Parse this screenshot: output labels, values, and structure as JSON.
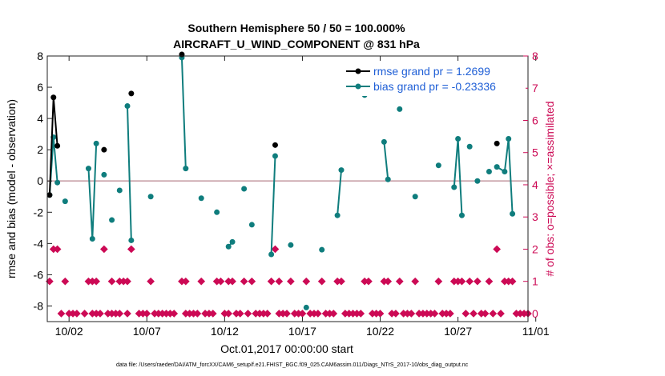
{
  "chart_data": {
    "type": "line",
    "title": "Southern Hemisphere 50 / 50 = 100.000%",
    "subtitle": "AIRCRAFT_U_WIND_COMPONENT @ 831 hPa",
    "xlabel": "Oct.01,2017 00:00:00 start",
    "ylabel": "rmse and bias (model - observation)",
    "y2label": "# of obs: o=possible; ×=assimilated",
    "footnote": "data file: /Users/raeder/DAI/ATM_forcXX/CAM6_setup/f.e21.FHIST_BGC.f09_025.CAM6assim.011/Diags_NTrS_2017-10/obs_diag_output.nc",
    "xlim": [
      0.6,
      31.5
    ],
    "ylim": [
      -9,
      8
    ],
    "y2lim": [
      -0.25,
      8
    ],
    "x_ticks": [
      2,
      7,
      12,
      17,
      22,
      27,
      32
    ],
    "x_tick_labels": [
      "10/02",
      "10/07",
      "10/12",
      "10/17",
      "10/22",
      "10/27",
      "11/01"
    ],
    "y_ticks": [
      -8,
      -6,
      -4,
      -2,
      0,
      2,
      4,
      6,
      8
    ],
    "y2_ticks": [
      0,
      1,
      2,
      3,
      4,
      5,
      6,
      7,
      8
    ],
    "zero_line": 0,
    "legend_location": "top-right",
    "series": [
      {
        "name": "rmse grand pr = 1.2699",
        "color": "#000000",
        "axis": "left",
        "segments": [
          [
            [
              0.75,
              -0.9
            ],
            [
              1.0,
              5.35
            ],
            [
              1.25,
              2.25
            ]
          ],
          [
            [
              4.25,
              2.0
            ]
          ],
          [
            [
              6.0,
              5.6
            ]
          ],
          [
            [
              9.25,
              8.1
            ]
          ],
          [
            [
              15.25,
              2.3
            ]
          ],
          [
            [
              29.5,
              2.4
            ]
          ]
        ]
      },
      {
        "name": "bias grand pr = -0.23336",
        "color": "#0f7d7d",
        "axis": "left",
        "segments": [
          [
            [
              0.75,
              -0.9
            ],
            [
              1.0,
              2.8
            ],
            [
              1.25,
              -0.1
            ]
          ],
          [
            [
              1.75,
              -1.3
            ]
          ],
          [
            [
              3.25,
              0.8
            ],
            [
              3.5,
              -3.7
            ],
            [
              3.75,
              2.4
            ]
          ],
          [
            [
              4.25,
              0.4
            ]
          ],
          [
            [
              4.75,
              -2.5
            ]
          ],
          [
            [
              5.25,
              -0.6
            ]
          ],
          [
            [
              5.75,
              4.8
            ],
            [
              6.0,
              -3.8
            ]
          ],
          [
            [
              7.25,
              -1.0
            ]
          ],
          [
            [
              9.25,
              7.9
            ],
            [
              9.5,
              0.8
            ]
          ],
          [
            [
              10.5,
              -1.1
            ]
          ],
          [
            [
              11.5,
              -2.0
            ]
          ],
          [
            [
              12.25,
              -4.2
            ],
            [
              12.5,
              -3.9
            ]
          ],
          [
            [
              13.25,
              -0.5
            ]
          ],
          [
            [
              13.75,
              -2.8
            ]
          ],
          [
            [
              15.0,
              -4.7
            ],
            [
              15.25,
              1.6
            ]
          ],
          [
            [
              16.25,
              -4.1
            ]
          ],
          [
            [
              17.25,
              -8.1
            ]
          ],
          [
            [
              18.25,
              -4.4
            ]
          ],
          [
            [
              19.25,
              -2.2
            ],
            [
              19.5,
              0.7
            ]
          ],
          [
            [
              21.0,
              5.5
            ]
          ],
          [
            [
              22.25,
              2.5
            ],
            [
              22.5,
              0.1
            ]
          ],
          [
            [
              23.25,
              4.6
            ]
          ],
          [
            [
              24.25,
              -1.0
            ]
          ],
          [
            [
              25.75,
              1.0
            ]
          ],
          [
            [
              26.75,
              -0.4
            ],
            [
              27.0,
              2.7
            ],
            [
              27.25,
              -2.2
            ]
          ],
          [
            [
              27.75,
              2.2
            ]
          ],
          [
            [
              28.25,
              0.0
            ]
          ],
          [
            [
              29.0,
              0.6
            ]
          ],
          [
            [
              29.5,
              0.9
            ],
            [
              30.0,
              0.6
            ],
            [
              30.25,
              2.7
            ],
            [
              30.5,
              -2.1
            ]
          ]
        ]
      }
    ],
    "obs_possible": {
      "symbol": "o",
      "axis": "right",
      "points": [
        [
          0.75,
          1
        ],
        [
          1.0,
          2
        ],
        [
          1.25,
          2
        ],
        [
          1.75,
          1
        ],
        [
          3.25,
          1
        ],
        [
          3.5,
          1
        ],
        [
          3.75,
          1
        ],
        [
          4.25,
          2
        ],
        [
          4.75,
          1
        ],
        [
          5.25,
          1
        ],
        [
          5.5,
          1
        ],
        [
          5.75,
          1
        ],
        [
          6.0,
          2
        ],
        [
          7.25,
          1
        ],
        [
          9.25,
          1
        ],
        [
          9.5,
          1
        ],
        [
          10.5,
          1
        ],
        [
          11.5,
          1
        ],
        [
          11.75,
          1
        ],
        [
          12.25,
          1
        ],
        [
          12.5,
          1
        ],
        [
          13.25,
          1
        ],
        [
          13.75,
          1
        ],
        [
          15.0,
          1
        ],
        [
          15.25,
          2
        ],
        [
          15.5,
          1
        ],
        [
          16.25,
          1
        ],
        [
          17.25,
          1
        ],
        [
          18.25,
          1
        ],
        [
          19.25,
          1
        ],
        [
          19.5,
          1
        ],
        [
          21.0,
          1
        ],
        [
          21.25,
          1
        ],
        [
          22.25,
          1
        ],
        [
          22.5,
          1
        ],
        [
          23.25,
          1
        ],
        [
          24.25,
          1
        ],
        [
          25.75,
          1
        ],
        [
          26.75,
          1
        ],
        [
          27.0,
          1
        ],
        [
          27.25,
          1
        ],
        [
          27.75,
          1
        ],
        [
          28.25,
          1
        ],
        [
          29.0,
          1
        ],
        [
          29.5,
          2
        ],
        [
          30.0,
          1
        ],
        [
          30.25,
          1
        ],
        [
          30.5,
          1
        ]
      ]
    },
    "obs_assimilated": {
      "symbol": "×",
      "axis": "right",
      "points": [
        [
          1.5,
          0
        ],
        [
          2.0,
          0
        ],
        [
          2.25,
          0
        ],
        [
          2.5,
          0
        ],
        [
          3.0,
          0
        ],
        [
          3.5,
          0
        ],
        [
          3.75,
          0
        ],
        [
          4.0,
          0
        ],
        [
          4.5,
          0
        ],
        [
          4.75,
          0
        ],
        [
          5.0,
          0
        ],
        [
          5.25,
          0
        ],
        [
          5.75,
          0
        ],
        [
          6.5,
          0
        ],
        [
          6.75,
          0
        ],
        [
          7.0,
          0
        ],
        [
          7.5,
          0
        ],
        [
          7.75,
          0
        ],
        [
          8.0,
          0
        ],
        [
          8.25,
          0
        ],
        [
          8.5,
          0
        ],
        [
          8.75,
          0
        ],
        [
          9.5,
          0
        ],
        [
          9.75,
          0
        ],
        [
          10.0,
          0
        ],
        [
          10.25,
          0
        ],
        [
          10.75,
          0
        ],
        [
          11.0,
          0
        ],
        [
          11.25,
          0
        ],
        [
          12.0,
          0
        ],
        [
          12.25,
          0
        ],
        [
          12.75,
          0
        ],
        [
          13.0,
          0
        ],
        [
          13.5,
          0
        ],
        [
          14.0,
          0
        ],
        [
          14.25,
          0
        ],
        [
          14.5,
          0
        ],
        [
          14.75,
          0
        ],
        [
          15.5,
          0
        ],
        [
          15.75,
          0
        ],
        [
          16.0,
          0
        ],
        [
          16.5,
          0
        ],
        [
          16.75,
          0
        ],
        [
          17.0,
          0
        ],
        [
          17.5,
          0
        ],
        [
          17.75,
          0
        ],
        [
          18.0,
          0
        ],
        [
          18.5,
          0
        ],
        [
          18.75,
          0
        ],
        [
          19.0,
          0
        ],
        [
          19.75,
          0
        ],
        [
          20.0,
          0
        ],
        [
          20.25,
          0
        ],
        [
          20.5,
          0
        ],
        [
          20.75,
          0
        ],
        [
          21.5,
          0
        ],
        [
          21.75,
          0
        ],
        [
          22.0,
          0
        ],
        [
          22.75,
          0
        ],
        [
          23.0,
          0
        ],
        [
          23.5,
          0
        ],
        [
          23.75,
          0
        ],
        [
          24.0,
          0
        ],
        [
          24.5,
          0
        ],
        [
          24.75,
          0
        ],
        [
          25.0,
          0
        ],
        [
          25.25,
          0
        ],
        [
          25.5,
          0
        ],
        [
          26.0,
          0
        ],
        [
          26.25,
          0
        ],
        [
          26.5,
          0
        ],
        [
          27.5,
          0
        ],
        [
          28.0,
          0
        ],
        [
          28.5,
          0
        ],
        [
          28.75,
          0
        ],
        [
          29.25,
          0
        ],
        [
          29.75,
          0
        ],
        [
          30.75,
          0
        ],
        [
          31.0,
          0
        ],
        [
          31.25,
          0
        ],
        [
          31.5,
          0
        ]
      ]
    },
    "colors": {
      "rmse": "#000000",
      "bias": "#0f7d7d",
      "obs": "#cc0a55",
      "legend_text": "#1f5fd6",
      "zero_line": "#c8a0a8"
    }
  }
}
